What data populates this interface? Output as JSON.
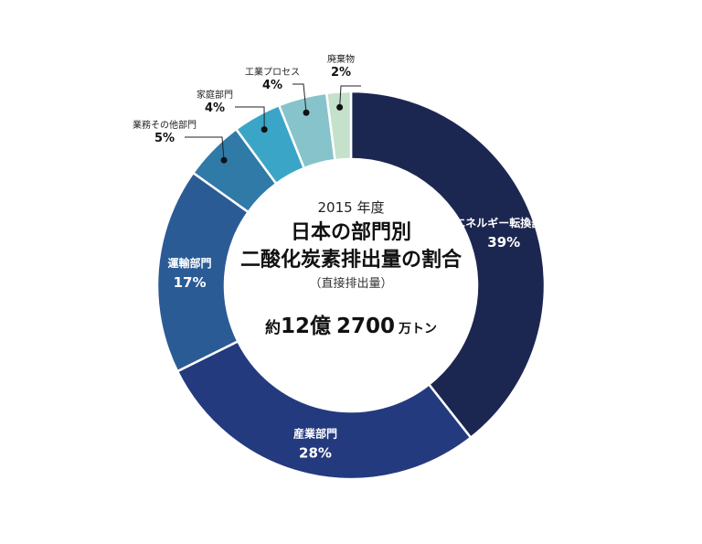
{
  "chart_data": {
    "type": "pie",
    "variant": "donut",
    "title_year": "2015 年度",
    "title_line1": "日本の部門別",
    "title_line2": "二酸化炭素排出量の割合",
    "subtitle": "（直接排出量）",
    "total": {
      "prefix": "約",
      "part1": "12億",
      "part2": "2700",
      "unit": "万トン"
    },
    "slices": [
      {
        "label": "エネルギー転換部門",
        "value": 39,
        "pct": "39%",
        "color": "#1c2751",
        "label_pos": "inside"
      },
      {
        "label": "産業部門",
        "value": 28,
        "pct": "28%",
        "color": "#243a7e",
        "label_pos": "inside"
      },
      {
        "label": "運輸部門",
        "value": 17,
        "pct": "17%",
        "color": "#2b5b95",
        "label_pos": "inside"
      },
      {
        "label": "業務その他部門",
        "value": 5,
        "pct": "5%",
        "color": "#2f7aa7",
        "label_pos": "outside"
      },
      {
        "label": "家庭部門",
        "value": 4,
        "pct": "4%",
        "color": "#3ba5c8",
        "label_pos": "outside"
      },
      {
        "label": "工業プロセス",
        "value": 4,
        "pct": "4%",
        "color": "#86c3cb",
        "label_pos": "outside"
      },
      {
        "label": "廃棄物",
        "value": 2,
        "pct": "2%",
        "color": "#c4e1cb",
        "label_pos": "outside"
      }
    ]
  }
}
